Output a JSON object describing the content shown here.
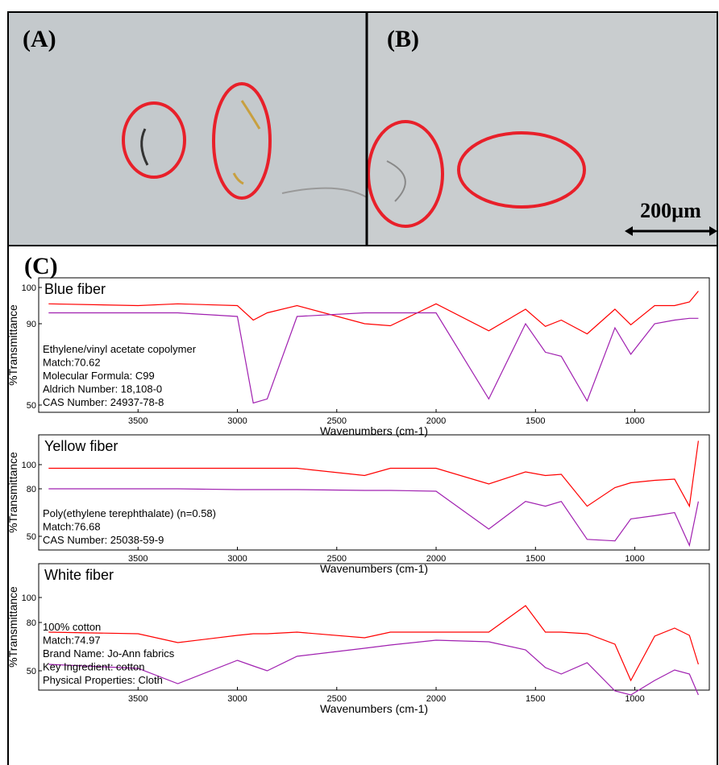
{
  "figure": {
    "panel_a_label": "(A)",
    "panel_b_label": "(B)",
    "panel_c_label": "(C)",
    "scale_bar": "200µm"
  },
  "chart_data": [
    {
      "type": "line",
      "title": "Blue fiber",
      "xlabel": "Wavenumbers (cm-1)",
      "ylabel": "%Transmittance",
      "annotations": [
        "Ethylene/vinyl acetate copolymer",
        "Match:70.62",
        "Molecular Formula:  C99",
        "Aldrich Number:    18,108-0",
        "CAS Number:    24937-78-8"
      ],
      "x": [
        3950,
        3500,
        3300,
        3000,
        2920,
        2850,
        2700,
        2360,
        2230,
        2000,
        1735,
        1550,
        1450,
        1370,
        1240,
        1100,
        1020,
        900,
        800,
        725,
        680
      ],
      "series": [
        {
          "color": "#ff0000",
          "values": [
            95.5,
            95,
            95.5,
            95,
            91,
            93,
            95,
            90,
            89,
            95.5,
            86.5,
            94,
            88.7,
            91,
            85,
            94,
            89.5,
            95,
            95,
            96,
            99
          ]
        },
        {
          "color": "#a020b0",
          "values": [
            93,
            93,
            93,
            92,
            51,
            53,
            92,
            93,
            93,
            93,
            53,
            90,
            76,
            74,
            52,
            88,
            75,
            90,
            91,
            91.5,
            91.5
          ]
        }
      ],
      "xlim": [
        4000,
        625
      ],
      "xticks": [
        3500,
        3000,
        2500,
        2000,
        1500,
        1000
      ],
      "ylim": [
        46,
        103
      ],
      "yticks": [
        100,
        90,
        50
      ]
    },
    {
      "type": "line",
      "title": "Yellow fiber",
      "xlabel": "Wavenumbers (cm-1)",
      "ylabel": "%Transmittance",
      "annotations": [
        "Poly(ethylene terephthalate) (n=0.58)",
        "Match:76.68",
        "CAS Number:  25038-59-9"
      ],
      "x": [
        3950,
        3500,
        3300,
        3000,
        2920,
        2850,
        2700,
        2360,
        2230,
        2000,
        1735,
        1550,
        1450,
        1370,
        1240,
        1100,
        1020,
        900,
        800,
        725,
        680
      ],
      "series": [
        {
          "color": "#ff0000",
          "values": [
            97,
            97,
            97,
            97,
            97,
            97,
            97,
            91,
            97,
            97,
            84,
            94,
            91,
            92,
            69,
            81,
            85,
            87,
            88,
            69,
            120
          ]
        },
        {
          "color": "#a020b0",
          "values": [
            80,
            80,
            80,
            79.5,
            79.5,
            79.5,
            79.5,
            79,
            79,
            78.5,
            54.6,
            72,
            69,
            72,
            48,
            47,
            61,
            63,
            65,
            44,
            72
          ]
        }
      ],
      "xlim": [
        4000,
        625
      ],
      "xticks": [
        3500,
        3000,
        2500,
        2000,
        1500,
        1000
      ],
      "ylim": [
        41,
        125
      ],
      "yticks": [
        100,
        80,
        50
      ]
    },
    {
      "type": "line",
      "title": "White fiber",
      "xlabel": "Wavenumbers (cm-1)",
      "ylabel": "%Transmittance",
      "annotations": [
        "100% cotton",
        "Match:74.97",
        "Brand Name:  Jo-Ann fabrics",
        "Key Ingredient:  cotton",
        "Physical Properties:  Cloth"
      ],
      "x": [
        3950,
        3500,
        3300,
        3000,
        2920,
        2850,
        2700,
        2360,
        2230,
        2000,
        1735,
        1550,
        1450,
        1370,
        1240,
        1100,
        1020,
        900,
        800,
        725,
        680
      ],
      "series": [
        {
          "color": "#ff0000",
          "values": [
            74,
            73,
            67.5,
            72,
            73,
            73,
            74,
            70.5,
            74,
            74,
            74,
            93.5,
            74,
            74,
            73,
            66.5,
            44,
            71.5,
            76.5,
            72,
            54
          ]
        },
        {
          "color": "#a020b0",
          "values": [
            54,
            51.5,
            42,
            56.5,
            53,
            50,
            59,
            64,
            66,
            69,
            68,
            63,
            52,
            48,
            55,
            37.5,
            35,
            44,
            50.5,
            48,
            35
          ]
        }
      ],
      "xlim": [
        4000,
        625
      ],
      "xticks": [
        3500,
        3000,
        2500,
        2000,
        1500,
        1000
      ],
      "ylim": [
        38,
        127
      ],
      "yticks": [
        100,
        80,
        50
      ]
    }
  ]
}
